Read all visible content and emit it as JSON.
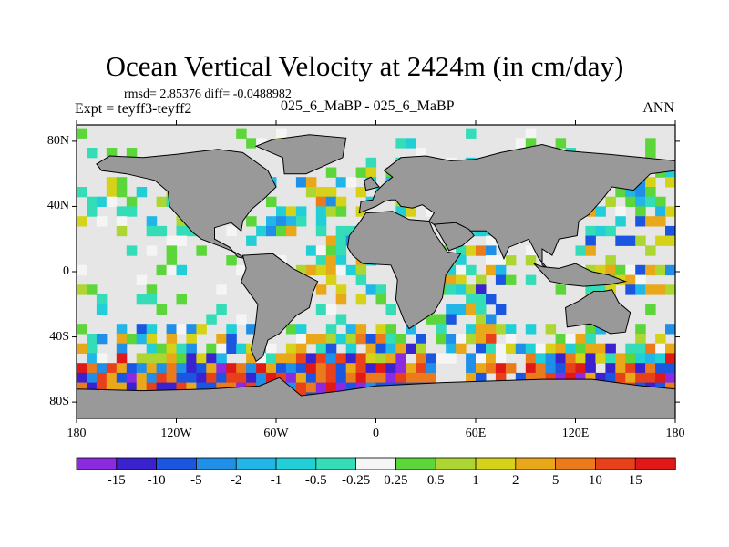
{
  "header": {
    "title": "Ocean Vertical Velocity at 2424m (in cm/day)",
    "stats": "rmsd= 2.85376 diff= -0.0488982",
    "experiment": "Expt = teyff3-teyff2",
    "case": "025_6_MaBP - 025_6_MaBP",
    "season": "ANN"
  },
  "chart_data": {
    "type": "heatmap",
    "title": "Ocean Vertical Velocity at 2424m (in cm/day)",
    "projection": "cylindrical-equidistant",
    "xlim": [
      -180,
      180
    ],
    "ylim": [
      -90,
      90
    ],
    "x_ticks": [
      {
        "value": -180,
        "label": "180"
      },
      {
        "value": -120,
        "label": "120W"
      },
      {
        "value": -60,
        "label": "60W"
      },
      {
        "value": 0,
        "label": "0"
      },
      {
        "value": 60,
        "label": "60E"
      },
      {
        "value": 120,
        "label": "120E"
      },
      {
        "value": 180,
        "label": "180"
      }
    ],
    "y_ticks": [
      {
        "value": 80,
        "label": "80N"
      },
      {
        "value": 40,
        "label": "40N"
      },
      {
        "value": 0,
        "label": "0"
      },
      {
        "value": -40,
        "label": "40S"
      },
      {
        "value": -80,
        "label": "80S"
      }
    ],
    "colorbar": {
      "boundaries": [
        "-15",
        "-10",
        "-5",
        "-2",
        "-1",
        "-0.5",
        "-0.25",
        "0.25",
        "0.5",
        "1",
        "2",
        "5",
        "10",
        "15"
      ],
      "colors": [
        "#8a2be2",
        "#3a23cf",
        "#1a56e0",
        "#1f8fe8",
        "#22b5e8",
        "#22cfd6",
        "#35dcb8",
        "#f5f5f5",
        "#5cd63a",
        "#aed632",
        "#d6d21a",
        "#e8a81a",
        "#ea7a1c",
        "#e8401a",
        "#e01818"
      ]
    },
    "land_color": "#999999",
    "near_zero_color": "#e6e6e6"
  }
}
